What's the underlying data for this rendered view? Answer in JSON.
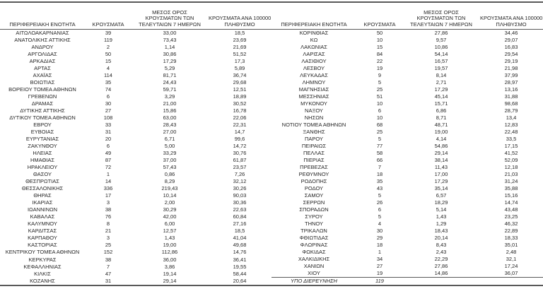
{
  "page": {
    "background": "#ffffff",
    "border_color": "#595959",
    "text_color": "#262626"
  },
  "header": {
    "col1": "ΠΕΡΙΦΕΡΕΙΑΚΗ ΕΝΟΤΗΤΑ",
    "col2": "ΚΡΟΥΣΜΑΤΑ",
    "col3_lines": [
      "ΜΕΣΟΣ ΟΡΟΣ",
      "ΚΡΟΥΣΜΑΤΩΝ ΤΩΝ",
      "ΤΕΛΕΥΤΑΙΩΝ 7 ΗΜΕΡΩΝ"
    ],
    "col4_lines": [
      "ΚΡΟΥΣΜΑΤΑ ΑΝΑ 100000",
      "ΠΛΗΘΥΣΜΟ"
    ]
  },
  "tables": [
    {
      "id": "left",
      "italic_last_row": false,
      "rows": [
        [
          "ΑΙΤΩΛΟΑΚΑΡΝΑΝΙΑΣ",
          "39",
          "33,00",
          "18,5"
        ],
        [
          "ΑΝΑΤΟΛΙΚΗΣ ΑΤΤΙΚΗΣ",
          "119",
          "73,43",
          "23,69"
        ],
        [
          "ΑΝΔΡΟΥ",
          "2",
          "1,14",
          "21,69"
        ],
        [
          "ΑΡΓΟΛΙΔΑΣ",
          "50",
          "30,86",
          "51,52"
        ],
        [
          "ΑΡΚΑΔΙΑΣ",
          "15",
          "17,29",
          "17,3"
        ],
        [
          "ΑΡΤΑΣ",
          "4",
          "5,29",
          "5,89"
        ],
        [
          "ΑΧΑΪΑΣ",
          "114",
          "81,71",
          "36,74"
        ],
        [
          "ΒΟΙΩΤΙΑΣ",
          "35",
          "24,43",
          "29,68"
        ],
        [
          "ΒΟΡΕΙΟΥ ΤΟΜΕΑ ΑΘΗΝΩΝ",
          "74",
          "59,71",
          "12,51"
        ],
        [
          "ΓΡΕΒΕΝΩΝ",
          "6",
          "3,29",
          "18,89"
        ],
        [
          "ΔΡΑΜΑΣ",
          "30",
          "21,00",
          "30,52"
        ],
        [
          "ΔΥΤΙΚΗΣ ΑΤΤΙΚΗΣ",
          "27",
          "15,86",
          "16,78"
        ],
        [
          "ΔΥΤΙΚΟΥ ΤΟΜΕΑ ΑΘΗΝΩΝ",
          "108",
          "63,00",
          "22,06"
        ],
        [
          "ΕΒΡΟΥ",
          "33",
          "28,43",
          "22,31"
        ],
        [
          "ΕΥΒΟΙΑΣ",
          "31",
          "27,00",
          "14,7"
        ],
        [
          "ΕΥΡΥΤΑΝΙΑΣ",
          "20",
          "6,71",
          "99,6"
        ],
        [
          "ΖΑΚΥΝΘΟΥ",
          "6",
          "5,00",
          "14,72"
        ],
        [
          "ΗΛΕΙΑΣ",
          "49",
          "33,29",
          "30,76"
        ],
        [
          "ΗΜΑΘΙΑΣ",
          "87",
          "37,00",
          "61,87"
        ],
        [
          "ΗΡΑΚΛΕΙΟΥ",
          "72",
          "57,43",
          "23,57"
        ],
        [
          "ΘΑΣΟΥ",
          "1",
          "0,86",
          "7,26"
        ],
        [
          "ΘΕΣΠΡΩΤΙΑΣ",
          "14",
          "8,29",
          "32,12"
        ],
        [
          "ΘΕΣΣΑΛΟΝΙΚΗΣ",
          "336",
          "219,43",
          "30,26"
        ],
        [
          "ΘΗΡΑΣ",
          "17",
          "10,14",
          "90,03"
        ],
        [
          "ΙΚΑΡΙΑΣ",
          "3",
          "2,00",
          "30,36"
        ],
        [
          "ΙΩΑΝΝΙΝΩΝ",
          "38",
          "30,29",
          "22,63"
        ],
        [
          "ΚΑΒΑΛΑΣ",
          "76",
          "42,00",
          "60,84"
        ],
        [
          "ΚΑΛΥΜΝΟΥ",
          "8",
          "6,00",
          "27,16"
        ],
        [
          "ΚΑΡΔΙΤΣΑΣ",
          "21",
          "12,57",
          "18,5"
        ],
        [
          "ΚΑΡΠΑΘΟΥ",
          "3",
          "1,43",
          "41,04"
        ],
        [
          "ΚΑΣΤΟΡΙΑΣ",
          "25",
          "19,00",
          "49,68"
        ],
        [
          "ΚΕΝΤΡΙΚΟΥ ΤΟΜΕΑ ΑΘΗΝΩΝ",
          "152",
          "112,86",
          "14,76"
        ],
        [
          "ΚΕΡΚΥΡΑΣ",
          "38",
          "36,00",
          "36,41"
        ],
        [
          "ΚΕΦΑΛΛΗΝΙΑΣ",
          "7",
          "3,86",
          "19,55"
        ],
        [
          "ΚΙΛΚΙΣ",
          "47",
          "19,14",
          "58,44"
        ],
        [
          "ΚΟΖΑΝΗΣ",
          "31",
          "29,14",
          "20,64"
        ]
      ]
    },
    {
      "id": "right",
      "italic_last_row": true,
      "rows": [
        [
          "ΚΟΡΙΝΘΙΑΣ",
          "50",
          "27,86",
          "34,46"
        ],
        [
          "ΚΩ",
          "10",
          "9,57",
          "29,07"
        ],
        [
          "ΛΑΚΩΝΙΑΣ",
          "15",
          "10,86",
          "16,83"
        ],
        [
          "ΛΑΡΙΣΑΣ",
          "84",
          "54,14",
          "29,54"
        ],
        [
          "ΛΑΣΙΘΙΟΥ",
          "22",
          "16,57",
          "29,19"
        ],
        [
          "ΛΕΣΒΟΥ",
          "19",
          "19,57",
          "21,98"
        ],
        [
          "ΛΕΥΚΑΔΑΣ",
          "9",
          "8,14",
          "37,99"
        ],
        [
          "ΛΗΜΝΟΥ",
          "5",
          "2,71",
          "28,97"
        ],
        [
          "ΜΑΓΝΗΣΙΑΣ",
          "25",
          "17,29",
          "13,16"
        ],
        [
          "ΜΕΣΣΗΝΙΑΣ",
          "51",
          "45,14",
          "31,88"
        ],
        [
          "ΜΥΚΟΝΟΥ",
          "10",
          "15,71",
          "98,68"
        ],
        [
          "ΝΑΞΟΥ",
          "6",
          "6,86",
          "28,79"
        ],
        [
          "ΝΗΣΩΝ",
          "10",
          "8,71",
          "13,4"
        ],
        [
          "ΝΟΤΙΟΥ ΤΟΜΕΑ ΑΘΗΝΩΝ",
          "68",
          "48,71",
          "12,83"
        ],
        [
          "ΞΑΝΘΗΣ",
          "25",
          "19,00",
          "22,48"
        ],
        [
          "ΠΑΡΟΥ",
          "5",
          "4,14",
          "33,5"
        ],
        [
          "ΠΕΙΡΑΙΩΣ",
          "77",
          "54,86",
          "17,15"
        ],
        [
          "ΠΕΛΛΑΣ",
          "58",
          "29,14",
          "41,52"
        ],
        [
          "ΠΙΕΡΙΑΣ",
          "66",
          "38,14",
          "52,09"
        ],
        [
          "ΠΡΕΒΕΖΑΣ",
          "7",
          "11,43",
          "12,18"
        ],
        [
          "ΡΕΘΥΜΝΟΥ",
          "18",
          "17,00",
          "21,03"
        ],
        [
          "ΡΟΔΟΠΗΣ",
          "35",
          "17,29",
          "31,24"
        ],
        [
          "ΡΟΔΟΥ",
          "43",
          "35,14",
          "35,88"
        ],
        [
          "ΣΑΜΟΥ",
          "5",
          "6,57",
          "15,16"
        ],
        [
          "ΣΕΡΡΩΝ",
          "26",
          "18,29",
          "14,74"
        ],
        [
          "ΣΠΟΡΑΔΩΝ",
          "6",
          "5,14",
          "43,48"
        ],
        [
          "ΣΥΡΟΥ",
          "5",
          "1,43",
          "23,25"
        ],
        [
          "ΤΗΝΟΥ",
          "4",
          "1,29",
          "46,32"
        ],
        [
          "ΤΡΙΚΑΛΩΝ",
          "30",
          "18,43",
          "22,89"
        ],
        [
          "ΦΘΙΩΤΙΔΑΣ",
          "29",
          "20,14",
          "18,33"
        ],
        [
          "ΦΛΩΡΙΝΑΣ",
          "18",
          "8,43",
          "35,01"
        ],
        [
          "ΦΩΚΙΔΑΣ",
          "1",
          "2,43",
          "2,48"
        ],
        [
          "ΧΑΛΚΙΔΙΚΗΣ",
          "34",
          "22,29",
          "32,1"
        ],
        [
          "ΧΑΝΙΩΝ",
          "27",
          "27,86",
          "17,24"
        ],
        [
          "ΧΙΟΥ",
          "19",
          "14,86",
          "36,07"
        ],
        [
          "ΥΠΟ ΔΙΕΡΕΥΝΗΣΗ",
          "119",
          "",
          ""
        ]
      ]
    }
  ]
}
